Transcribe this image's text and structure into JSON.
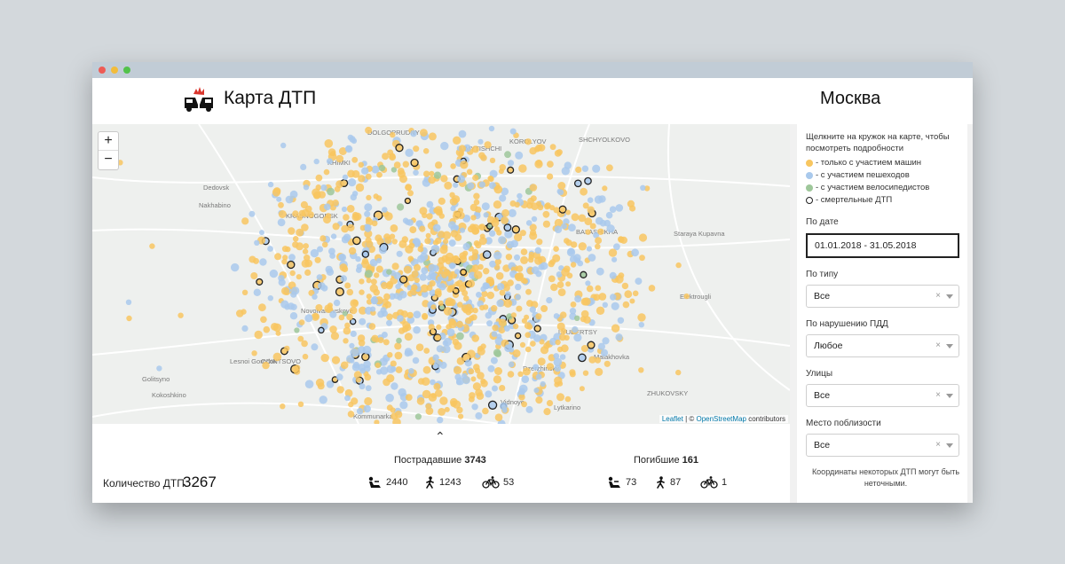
{
  "app": {
    "title": "Карта ДТП",
    "city": "Москва"
  },
  "map": {
    "zoom_in": "+",
    "zoom_out": "−",
    "attribution_leaflet": "Leaflet",
    "attribution_osm": "OpenStreetMap",
    "attribution_carto": "contributors",
    "place_labels": [
      "DOLGOPRUDNY",
      "KOROLYOV",
      "SHCHYOLKOVO",
      "MYTISHCHI",
      "KHIMKI",
      "Dedovsk",
      "Nakhabino",
      "KRASNOGORSK",
      "BALASHIKHA",
      "Staraya Kupavna",
      "Elektrougli",
      "Novoivanovskoye",
      "ODINTSOVO",
      "LYUBERTSY",
      "Lesnoi Gorodok",
      "Malakhovka",
      "Golitsyno",
      "Dzerzhinsky",
      "Kokoshkino",
      "ZHUKOVSKY",
      "Kommunarka",
      "Lytkarino",
      "Vidnoye"
    ],
    "colors": {
      "car": "#f8c660",
      "pedestrian": "#a9c9ec",
      "bicycle": "#9ec79a",
      "fatal_ring": "#222222"
    }
  },
  "stats": {
    "count_label": "Количество ДТП",
    "count_value": "3267",
    "injured_label": "Пострадавшие",
    "injured_total": "3743",
    "injured_drivers": "2440",
    "injured_pedestrians": "1243",
    "injured_cyclists": "53",
    "killed_label": "Погибшие",
    "killed_total": "161",
    "killed_drivers": "73",
    "killed_pedestrians": "87",
    "killed_cyclists": "1",
    "icons": {
      "driver": "car-seat-icon",
      "pedestrian": "walking-person-icon",
      "cyclist": "bicycle-icon",
      "expand": "chevron-up-icon"
    }
  },
  "sidebar": {
    "hint": "Щелкните на кружок на карте, чтобы посмотреть подробности",
    "legend": {
      "car": "- только с участием машин",
      "pedestrian": "- с участием пешеходов",
      "bicycle": "- с участием велосипедистов",
      "fatal": "- смертельные ДТП"
    },
    "date_label": "По дате",
    "date_value": "01.01.2018 - 31.05.2018",
    "type_label": "По типу",
    "type_value": "Все",
    "violation_label": "По нарушению ПДД",
    "violation_value": "Любое",
    "street_label": "Улицы",
    "street_value": "Все",
    "nearby_label": "Место поблизости",
    "nearby_value": "Все",
    "clear_glyph": "×",
    "note": "Координаты некоторых ДТП могут быть неточными."
  }
}
